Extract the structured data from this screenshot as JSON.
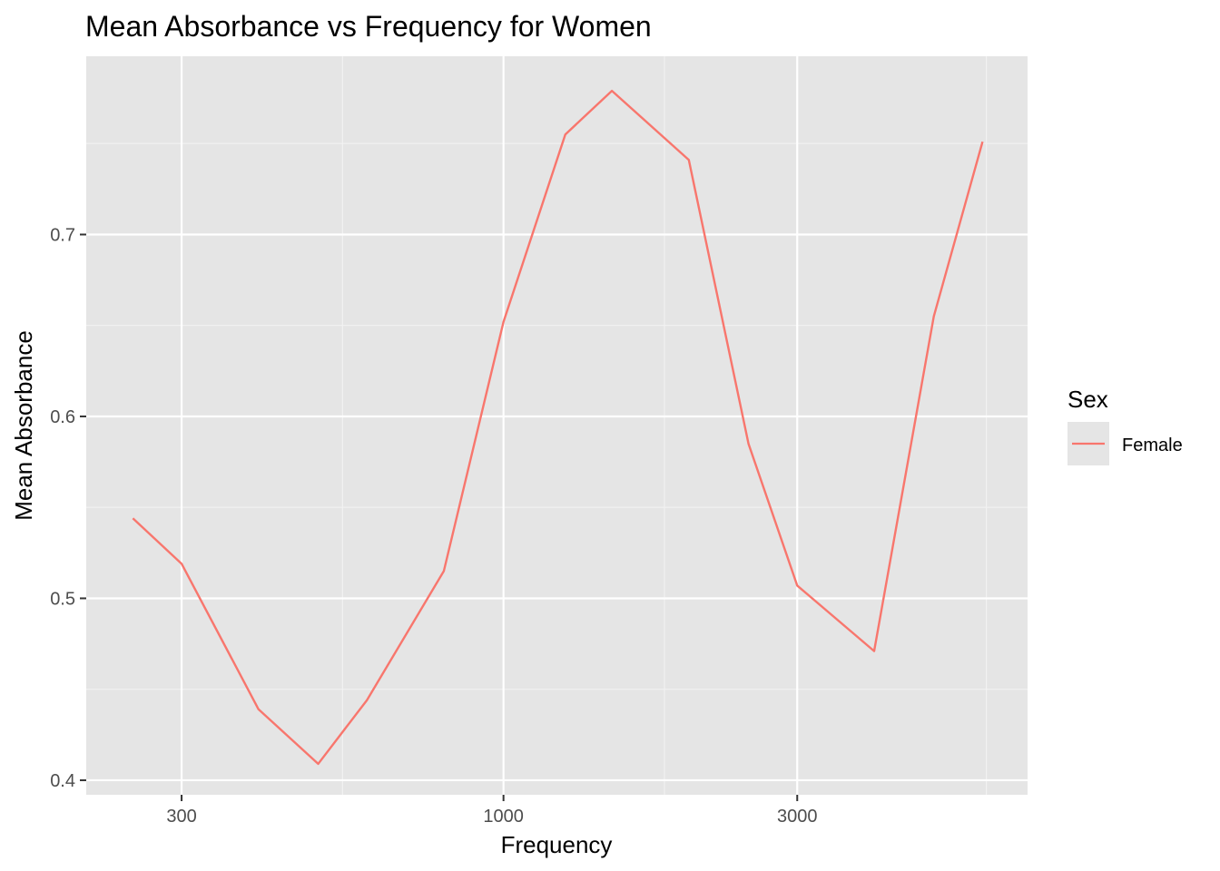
{
  "chart_data": {
    "type": "line",
    "title": "Mean Absorbance vs Frequency for Women",
    "xlabel": "Frequency",
    "ylabel": "Mean Absorbance",
    "x_scale": "log10",
    "xlim": [
      210,
      7100
    ],
    "ylim": [
      0.392,
      0.798
    ],
    "x_ticks": [
      300,
      1000,
      3000
    ],
    "x_tick_labels": [
      "300",
      "1000",
      "3000"
    ],
    "y_ticks": [
      0.4,
      0.5,
      0.6,
      0.7
    ],
    "y_tick_labels": [
      "0.4",
      "0.5",
      "0.6",
      "0.7"
    ],
    "grid": true,
    "legend": {
      "title": "Sex",
      "position": "right"
    },
    "series": [
      {
        "name": "Female",
        "color": "#F8766D",
        "x": [
          250,
          300,
          400,
          500,
          600,
          800,
          1000,
          1260,
          1500,
          2000,
          2500,
          3000,
          4000,
          5000,
          6000
        ],
        "y": [
          0.544,
          0.519,
          0.439,
          0.409,
          0.444,
          0.515,
          0.652,
          0.755,
          0.779,
          0.741,
          0.585,
          0.507,
          0.471,
          0.655,
          0.751
        ]
      }
    ]
  }
}
